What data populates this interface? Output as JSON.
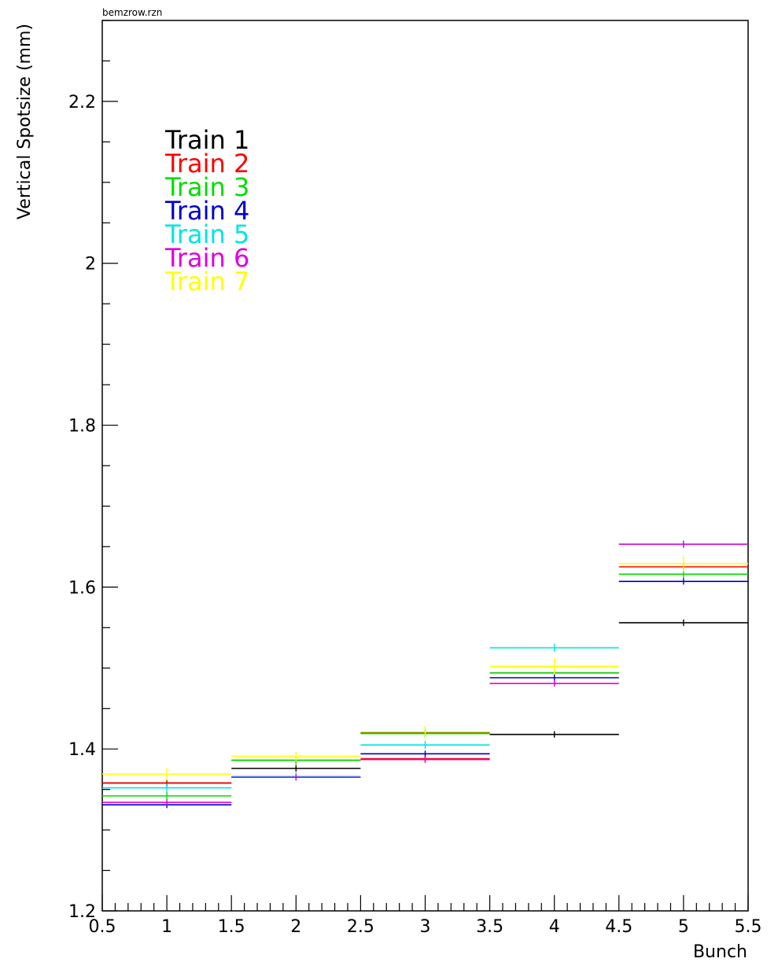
{
  "file_label": "bemzrow.rzn",
  "chart_data": {
    "type": "step",
    "title": "",
    "xlabel": "Bunch",
    "ylabel": "Vertical Spotsize (mm)",
    "xlim": [
      0.5,
      5.5
    ],
    "ylim": [
      1.2,
      2.3
    ],
    "x_major_ticks": [
      0.5,
      1,
      1.5,
      2,
      2.5,
      3,
      3.5,
      4,
      4.5,
      5,
      5.5
    ],
    "x_tick_labels": [
      "0.5",
      "1",
      "1.5",
      "2",
      "2.5",
      "3",
      "3.5",
      "4",
      "4.5",
      "5",
      "5.5"
    ],
    "y_major_ticks": [
      1.2,
      1.4,
      1.6,
      1.8,
      2.0,
      2.2
    ],
    "y_tick_labels": [
      "1.2",
      "1.4",
      "1.6",
      "1.8",
      "2",
      "2.2"
    ],
    "x": [
      1,
      2,
      3,
      4,
      5
    ],
    "legend_position": "top-left",
    "grid": false,
    "series": [
      {
        "name": "Train 1",
        "color": "#000000",
        "values": [
          1.358,
          1.376,
          1.42,
          1.418,
          1.556
        ],
        "errors": [
          0.004,
          0.004,
          0.004,
          0.004,
          0.004
        ]
      },
      {
        "name": "Train 2",
        "color": "#ff0000",
        "values": [
          1.358,
          1.386,
          1.388,
          1.494,
          1.625
        ],
        "errors": [
          0.005,
          0.005,
          0.005,
          0.005,
          0.005
        ]
      },
      {
        "name": "Train 3",
        "color": "#00dd00",
        "values": [
          1.342,
          1.386,
          1.419,
          1.494,
          1.616
        ],
        "errors": [
          0.005,
          0.005,
          0.005,
          0.005,
          0.005
        ]
      },
      {
        "name": "Train 4",
        "color": "#0000cc",
        "values": [
          1.331,
          1.365,
          1.394,
          1.488,
          1.607
        ],
        "errors": [
          0.004,
          0.004,
          0.004,
          0.004,
          0.004
        ]
      },
      {
        "name": "Train 5",
        "color": "#00e5e5",
        "values": [
          1.352,
          1.366,
          1.405,
          1.525,
          1.653
        ],
        "errors": [
          0.005,
          0.005,
          0.005,
          0.005,
          0.005
        ]
      },
      {
        "name": "Train 6",
        "color": "#dd00dd",
        "values": [
          1.334,
          1.365,
          1.387,
          1.481,
          1.653
        ],
        "errors": [
          0.004,
          0.004,
          0.004,
          0.004,
          0.004
        ]
      },
      {
        "name": "Train 7",
        "color": "#ffff00",
        "values": [
          1.369,
          1.391,
          1.421,
          1.502,
          1.629
        ],
        "errors": [
          0.008,
          0.006,
          0.008,
          0.01,
          0.01
        ]
      }
    ]
  }
}
